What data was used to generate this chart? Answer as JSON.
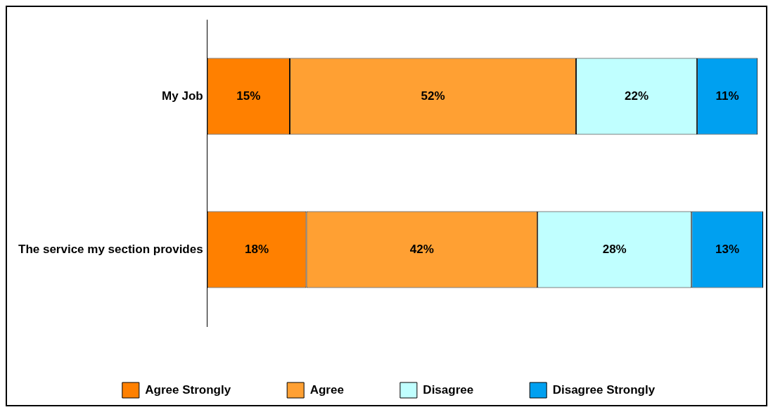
{
  "chart_data": {
    "type": "bar",
    "orientation": "horizontal",
    "stacked": true,
    "categories": [
      "My Job",
      "The service my section provides"
    ],
    "series": [
      {
        "name": "Agree Strongly",
        "color": "#ff8000",
        "values": [
          15,
          18
        ],
        "value_labels": [
          "15%",
          "18%"
        ]
      },
      {
        "name": "Agree",
        "color": "#ffa033",
        "values": [
          52,
          42
        ],
        "value_labels": [
          "52%",
          "42%"
        ]
      },
      {
        "name": "Disagree",
        "color": "#c0ffff",
        "values": [
          22,
          28
        ],
        "value_labels": [
          "22%",
          "28%"
        ]
      },
      {
        "name": "Disagree Strongly",
        "color": "#00a0f0",
        "values": [
          11,
          13
        ],
        "value_labels": [
          "11%",
          "13%"
        ]
      }
    ],
    "xlim": [
      0,
      101
    ],
    "tick_labels": "y",
    "grid": false,
    "legend": "bottom"
  }
}
